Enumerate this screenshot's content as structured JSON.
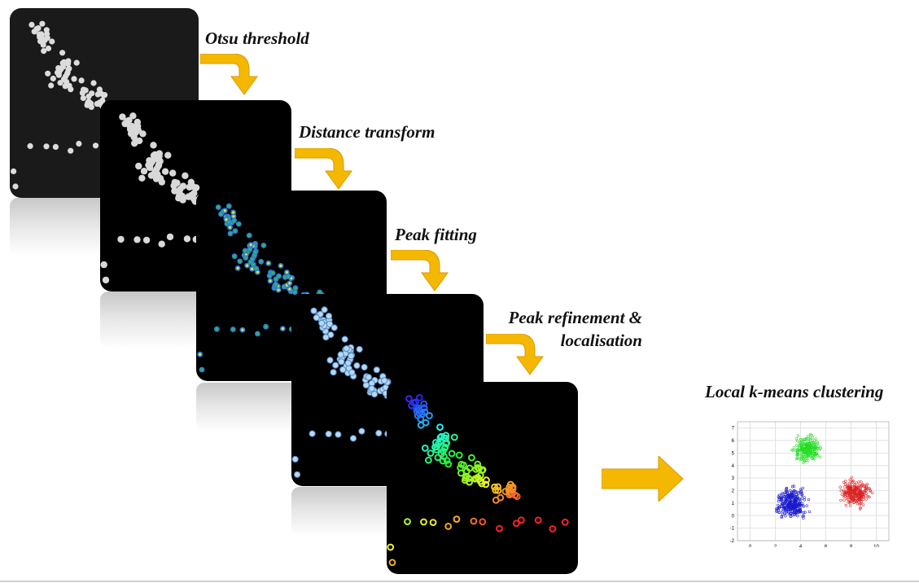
{
  "steps": [
    {
      "label": "Otsu threshold"
    },
    {
      "label": "Distance transform"
    },
    {
      "label": "Peak fitting"
    },
    {
      "label_line1": "Peak refinement &",
      "label_line2": "localisation"
    },
    {
      "label": "Local k-means clustering"
    }
  ],
  "scatter_axis": {
    "x_ticks": [
      "0",
      "2",
      "4",
      "6",
      "8",
      "10"
    ],
    "y_ticks": [
      "7",
      "6",
      "5",
      "4",
      "3",
      "2",
      "1",
      "0",
      "-1",
      "-2"
    ]
  },
  "cluster_colors": {
    "green": "#22dd22",
    "blue": "#1a1acc",
    "red": "#dd2222"
  },
  "arrow_color": "#f5b800",
  "icons": [
    "bent-arrow-icon",
    "right-arrow-icon"
  ]
}
